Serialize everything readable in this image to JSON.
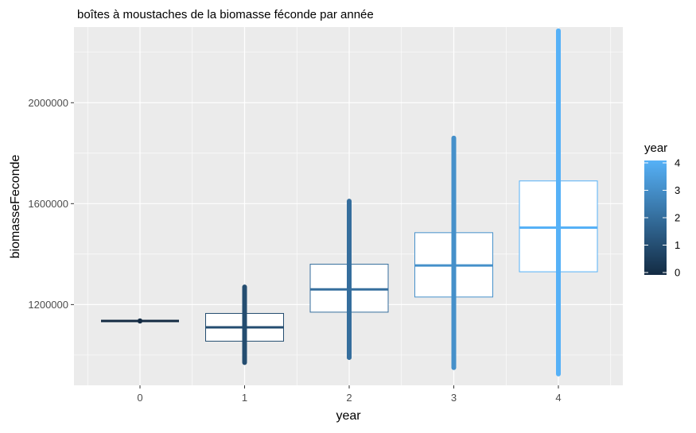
{
  "chart_data": {
    "type": "boxplot",
    "title": "boîtes à moustaches de la biomasse féconde par année",
    "xlabel": "year",
    "ylabel": "biomasseFeconde",
    "categories": [
      "0",
      "1",
      "2",
      "3",
      "4"
    ],
    "y_ticks": [
      1200000,
      1600000,
      2000000
    ],
    "y_tick_labels": [
      "1200000",
      "1600000",
      "2000000"
    ],
    "ylim": [
      880000,
      2300000
    ],
    "grid": true,
    "legend": {
      "title": "year",
      "position": "right",
      "ticks": [
        "0",
        "1",
        "2",
        "3",
        "4"
      ],
      "colors": [
        "#132B43",
        "#56B1F7"
      ]
    },
    "boxes": [
      {
        "year": "0",
        "min": 1135000,
        "q1": 1135000,
        "median": 1135000,
        "q3": 1135000,
        "max": 1135000
      },
      {
        "year": "1",
        "min": 970000,
        "q1": 1055000,
        "median": 1110000,
        "q3": 1165000,
        "max": 1270000
      },
      {
        "year": "2",
        "min": 990000,
        "q1": 1170000,
        "median": 1260000,
        "q3": 1360000,
        "max": 1610000
      },
      {
        "year": "3",
        "min": 950000,
        "q1": 1230000,
        "median": 1355000,
        "q3": 1485000,
        "max": 1860000
      },
      {
        "year": "4",
        "min": 925000,
        "q1": 1330000,
        "median": 1505000,
        "q3": 1690000,
        "max": 2285000
      }
    ]
  }
}
